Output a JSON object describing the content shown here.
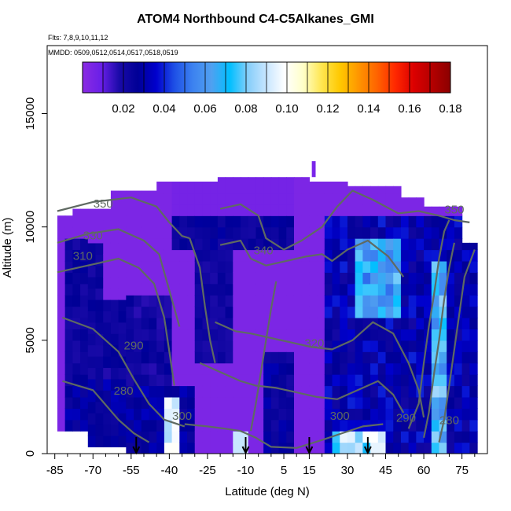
{
  "chart_data": {
    "type": "heatmap",
    "title": "ATOM4 Northbound C4-C5Alkanes_GMI",
    "flights_label": "Flts: 7,8,9,10,11,12",
    "dates_label": "MMDD: 0509,0512,0514,0517,0518,0519",
    "xlabel": "Latitude (deg N)",
    "ylabel": "Altitude (m)",
    "xlim": [
      -88,
      85
    ],
    "ylim": [
      0,
      18000
    ],
    "x_ticks": [
      "-85",
      "-70",
      "-55",
      "-40",
      "-25",
      "-10",
      "5",
      "15",
      "30",
      "45",
      "60",
      "75"
    ],
    "x_tick_values": [
      -85,
      -70,
      -55,
      -40,
      -25,
      -10,
      5,
      15,
      30,
      45,
      60,
      75
    ],
    "y_ticks": [
      "0",
      "5000",
      "10000",
      "15000"
    ],
    "y_tick_values": [
      0,
      5000,
      10000,
      15000
    ],
    "colorbar": {
      "range": [
        0,
        0.18
      ],
      "ticks": [
        "0.02",
        "0.04",
        "0.06",
        "0.08",
        "0.10",
        "0.12",
        "0.14",
        "0.16",
        "0.18"
      ],
      "tick_values": [
        0.02,
        0.04,
        0.06,
        0.08,
        0.1,
        0.12,
        0.14,
        0.16,
        0.18
      ],
      "colors": [
        "#8a2be2",
        "#6a1fe8",
        "#1a0aa8",
        "#000096",
        "#0000cd",
        "#1e50e6",
        "#3c82f0",
        "#50a0f0",
        "#00bfff",
        "#87cefa",
        "#c8e6ff",
        "#ffffff",
        "#ffffc8",
        "#ffe650",
        "#ffc800",
        "#ff9600",
        "#ff6400",
        "#ff2800",
        "#dc0000",
        "#b40000",
        "#8b0000"
      ]
    },
    "contour_labels": [
      {
        "text": "350",
        "x": -66,
        "y": 10850
      },
      {
        "text": "330",
        "x": -70,
        "y": 9450
      },
      {
        "text": "310",
        "x": -74,
        "y": 8550
      },
      {
        "text": "340",
        "x": -3,
        "y": 8800
      },
      {
        "text": "350",
        "x": 72,
        "y": 10600
      },
      {
        "text": "320",
        "x": 17,
        "y": 4700
      },
      {
        "text": "290",
        "x": -54,
        "y": 4600
      },
      {
        "text": "280",
        "x": -58,
        "y": 2600
      },
      {
        "text": "300",
        "x": -35,
        "y": 1500
      },
      {
        "text": "300",
        "x": 27,
        "y": 1500
      },
      {
        "text": "290",
        "x": 53,
        "y": 1400
      },
      {
        "text": "280",
        "x": 70,
        "y": 1300
      }
    ],
    "arrow_latitudes": [
      -53,
      -10,
      15,
      38
    ],
    "colors": {
      "background_field": "#8b2bed",
      "contour": "#5f6a62",
      "arrow": "#000000"
    }
  }
}
